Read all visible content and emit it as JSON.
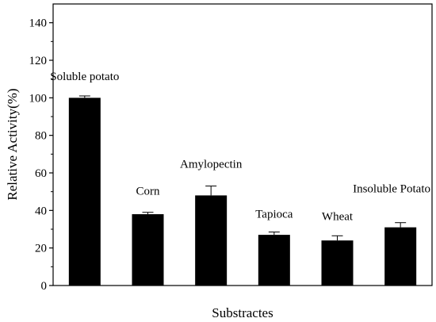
{
  "chart_data": {
    "type": "bar",
    "categories": [
      "Soluble potato",
      "Corn",
      "Amylopectin",
      "Tapioca",
      "Wheat",
      "Insoluble Potato"
    ],
    "values": [
      100,
      38,
      48,
      27,
      24,
      31
    ],
    "errors": [
      1,
      1,
      5,
      1.5,
      2.5,
      2.5
    ],
    "xlabel": "Substractes",
    "ylabel": "Relative Activity(%)",
    "ylim": [
      0,
      150
    ],
    "yticks": [
      0,
      20,
      40,
      60,
      80,
      100,
      120,
      140
    ],
    "ytick_labels": [
      "0",
      "20",
      "40",
      "60",
      "80",
      "100",
      "120",
      "140"
    ],
    "bar_color": "#000000",
    "grid": false,
    "legend": "none"
  }
}
